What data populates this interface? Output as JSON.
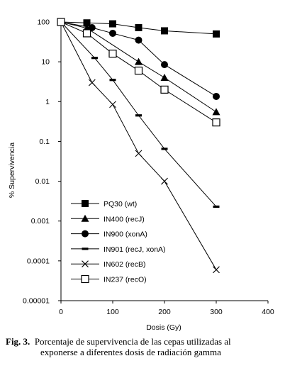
{
  "chart_data": {
    "type": "line",
    "xlabel": "Dosis (Gy)",
    "ylabel": "% Supervivencia",
    "xlim": [
      0,
      400
    ],
    "ylim": [
      1e-05,
      100
    ],
    "y_scale": "log",
    "x_ticks": [
      "0",
      "100",
      "200",
      "300",
      "400"
    ],
    "y_ticks": [
      "0.00001",
      "0.0001",
      "0.001",
      "0.01",
      "0.1",
      "1",
      "10",
      "100"
    ],
    "legend_placement": "bottom-left",
    "grid": false,
    "series": [
      {
        "name": "PQ30 (wt)",
        "marker": "filled-square",
        "x": [
          0,
          50,
          100,
          150,
          200,
          300
        ],
        "y": [
          100,
          95,
          90,
          72,
          60,
          50
        ]
      },
      {
        "name": "IN400 (recJ)",
        "marker": "filled-triangle",
        "x": [
          0,
          50,
          150,
          200,
          300
        ],
        "y": [
          100,
          70,
          10,
          4,
          0.55
        ]
      },
      {
        "name": "IN900 (xonA)",
        "marker": "filled-circle",
        "x": [
          0,
          60,
          100,
          150,
          200,
          300
        ],
        "y": [
          100,
          72,
          52,
          35,
          8.5,
          1.35
        ]
      },
      {
        "name": "IN901 (recJ, xonA)",
        "marker": "dash",
        "x": [
          0,
          65,
          100,
          150,
          200,
          300
        ],
        "y": [
          100,
          12.5,
          3.5,
          0.45,
          0.065,
          0.0023
        ]
      },
      {
        "name": "IN602 (recB)",
        "marker": "x",
        "x": [
          0,
          60,
          100,
          150,
          200,
          300
        ],
        "y": [
          100,
          3,
          0.85,
          0.05,
          0.01,
          6e-05
        ]
      },
      {
        "name": "IN237 (recO)",
        "marker": "open-square",
        "x": [
          0,
          50,
          100,
          150,
          200,
          300
        ],
        "y": [
          100,
          52,
          16,
          6,
          2,
          0.3
        ]
      }
    ]
  },
  "caption": {
    "label": "Fig. 3.",
    "line1": "Porcentaje de supervivencia de las cepas utilizadas al",
    "line2": "exponerse a diferentes dosis de radiación gamma"
  }
}
